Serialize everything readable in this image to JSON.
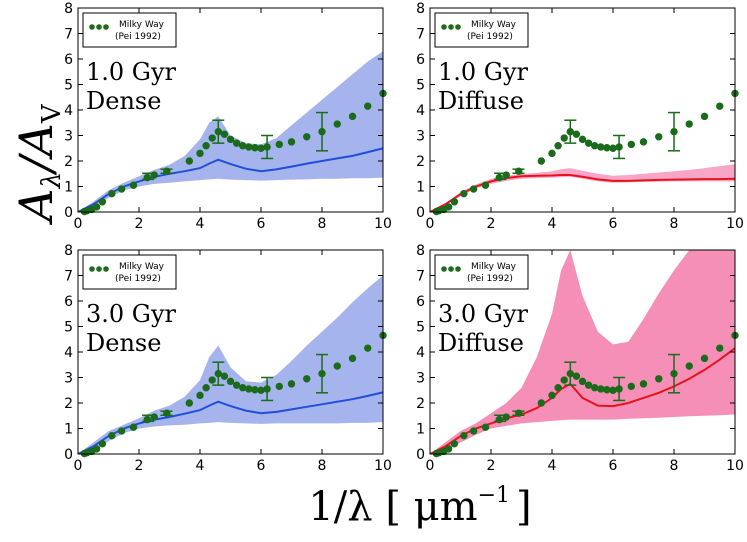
{
  "figure": {
    "ylabel": "Aλ/AV",
    "ylabel_main": "A",
    "ylabel_sub1": "λ",
    "ylabel_slash": "/A",
    "ylabel_sub2": "V",
    "xlabel": "1/λ [ μm⁻¹ ]",
    "xlabel_main": "1/λ [ μm",
    "xlabel_sup": "−1",
    "xlabel_close": "]"
  },
  "chart_data": [
    {
      "type": "line",
      "panel": "top-left",
      "title_line1": "1.0 Gyr",
      "title_line2": "Dense",
      "xlim": [
        0,
        10
      ],
      "ylim": [
        0,
        8
      ],
      "xticks": [
        0,
        2,
        4,
        6,
        8,
        10
      ],
      "yticks": [
        0,
        1,
        2,
        3,
        4,
        5,
        6,
        7,
        8
      ],
      "color": "#1f4fd6",
      "band_color": "#a6b4ee",
      "legend": {
        "label_line1": "Milky Way",
        "label_line2": "(Pei 1992)",
        "marker_color": "#1a6b1a",
        "position": "top-left"
      },
      "model": {
        "x": [
          0,
          0.5,
          1,
          1.5,
          2,
          2.5,
          3,
          3.5,
          4,
          4.3,
          4.6,
          5,
          5.5,
          6,
          6.5,
          7,
          7.5,
          8,
          8.5,
          9,
          9.5,
          10
        ],
        "median": [
          0,
          0.3,
          0.7,
          1.0,
          1.2,
          1.38,
          1.5,
          1.6,
          1.72,
          1.9,
          2.05,
          1.88,
          1.7,
          1.6,
          1.67,
          1.78,
          1.9,
          2.0,
          2.1,
          2.2,
          2.35,
          2.5
        ],
        "lower": [
          0,
          0.22,
          0.55,
          0.85,
          1.0,
          1.1,
          1.15,
          1.2,
          1.25,
          1.28,
          1.3,
          1.27,
          1.25,
          1.23,
          1.25,
          1.27,
          1.28,
          1.3,
          1.3,
          1.32,
          1.32,
          1.35
        ],
        "upper": [
          0,
          0.4,
          0.85,
          1.15,
          1.4,
          1.65,
          1.85,
          2.2,
          2.85,
          3.5,
          3.75,
          3.0,
          2.7,
          2.65,
          2.9,
          3.4,
          3.9,
          4.4,
          4.9,
          5.4,
          5.9,
          6.3
        ]
      }
    },
    {
      "type": "line",
      "panel": "top-right",
      "title_line1": "1.0 Gyr",
      "title_line2": "Diffuse",
      "xlim": [
        0,
        10
      ],
      "ylim": [
        0,
        8
      ],
      "xticks": [
        0,
        2,
        4,
        6,
        8,
        10
      ],
      "yticks": [
        0,
        1,
        2,
        3,
        4,
        5,
        6,
        7,
        8
      ],
      "color": "#e8121c",
      "band_color": "#f7a6c8",
      "legend": {
        "label_line1": "Milky Way",
        "label_line2": "(Pei 1992)",
        "marker_color": "#1a6b1a",
        "position": "top-left"
      },
      "model": {
        "x": [
          0,
          0.5,
          1,
          1.5,
          2,
          2.5,
          3,
          3.5,
          4,
          4.3,
          4.6,
          5,
          5.5,
          6,
          6.5,
          7,
          7.5,
          8,
          8.5,
          9,
          9.5,
          10
        ],
        "median": [
          0,
          0.3,
          0.7,
          1.0,
          1.2,
          1.33,
          1.4,
          1.42,
          1.43,
          1.45,
          1.45,
          1.38,
          1.28,
          1.22,
          1.22,
          1.24,
          1.26,
          1.27,
          1.28,
          1.29,
          1.29,
          1.3
        ],
        "lower": [
          0,
          0.26,
          0.62,
          0.92,
          1.1,
          1.22,
          1.3,
          1.33,
          1.35,
          1.37,
          1.38,
          1.3,
          1.2,
          1.15,
          1.16,
          1.18,
          1.19,
          1.2,
          1.2,
          1.2,
          1.2,
          1.2
        ],
        "upper": [
          0,
          0.34,
          0.78,
          1.08,
          1.3,
          1.42,
          1.5,
          1.53,
          1.6,
          1.68,
          1.72,
          1.62,
          1.5,
          1.42,
          1.45,
          1.5,
          1.55,
          1.6,
          1.65,
          1.72,
          1.8,
          1.88
        ]
      }
    },
    {
      "type": "line",
      "panel": "bottom-left",
      "title_line1": "3.0 Gyr",
      "title_line2": "Dense",
      "xlim": [
        0,
        10
      ],
      "ylim": [
        0,
        8
      ],
      "xticks": [
        0,
        2,
        4,
        6,
        8,
        10
      ],
      "yticks": [
        0,
        1,
        2,
        3,
        4,
        5,
        6,
        7,
        8
      ],
      "color": "#1f4fd6",
      "band_color": "#a6b4ee",
      "legend": {
        "label_line1": "Milky Way",
        "label_line2": "(Pei 1992)",
        "marker_color": "#1a6b1a",
        "position": "top-left"
      },
      "model": {
        "x": [
          0,
          0.5,
          1,
          1.5,
          2,
          2.5,
          3,
          3.5,
          4,
          4.3,
          4.6,
          5,
          5.5,
          6,
          6.5,
          7,
          7.5,
          8,
          8.5,
          9,
          9.5,
          10
        ],
        "median": [
          0,
          0.3,
          0.7,
          1.0,
          1.2,
          1.35,
          1.45,
          1.58,
          1.72,
          1.9,
          2.05,
          1.88,
          1.7,
          1.6,
          1.65,
          1.75,
          1.85,
          1.95,
          2.05,
          2.15,
          2.28,
          2.42
        ],
        "lower": [
          0,
          0.15,
          0.5,
          0.82,
          1.0,
          1.08,
          1.12,
          1.15,
          1.2,
          1.22,
          1.25,
          1.22,
          1.2,
          1.18,
          1.2,
          1.2,
          1.2,
          1.2,
          1.2,
          1.22,
          1.22,
          1.25
        ],
        "upper": [
          0,
          0.45,
          0.9,
          1.15,
          1.4,
          1.7,
          1.9,
          2.25,
          2.9,
          3.8,
          4.25,
          3.4,
          2.85,
          2.8,
          3.1,
          3.65,
          4.25,
          4.8,
          5.35,
          5.95,
          6.5,
          7.0
        ]
      }
    },
    {
      "type": "line",
      "panel": "bottom-right",
      "title_line1": "3.0 Gyr",
      "title_line2": "Diffuse",
      "xlim": [
        0,
        10
      ],
      "ylim": [
        0,
        8
      ],
      "xticks": [
        0,
        2,
        4,
        6,
        8,
        10
      ],
      "yticks": [
        0,
        1,
        2,
        3,
        4,
        5,
        6,
        7,
        8
      ],
      "color": "#e8121c",
      "band_color": "#f58fb8",
      "legend": {
        "label_line1": "Milky Way",
        "label_line2": "(Pei 1992)",
        "marker_color": "#1a6b1a",
        "position": "top-left"
      },
      "model": {
        "x": [
          0,
          0.5,
          1,
          1.5,
          2,
          2.5,
          3,
          3.5,
          4,
          4.3,
          4.6,
          5,
          5.5,
          6,
          6.5,
          7,
          7.5,
          8,
          8.5,
          9,
          9.5,
          10
        ],
        "median": [
          0,
          0.3,
          0.7,
          1.0,
          1.2,
          1.4,
          1.55,
          1.8,
          2.2,
          2.55,
          2.75,
          2.2,
          1.9,
          1.88,
          2.0,
          2.2,
          2.4,
          2.65,
          2.95,
          3.3,
          3.7,
          4.15
        ],
        "lower": [
          0,
          0.15,
          0.45,
          0.75,
          1.0,
          1.1,
          1.2,
          1.25,
          1.3,
          1.32,
          1.35,
          1.35,
          1.35,
          1.35,
          1.38,
          1.4,
          1.42,
          1.45,
          1.48,
          1.5,
          1.52,
          1.55
        ],
        "upper": [
          0,
          0.45,
          0.9,
          1.2,
          1.6,
          2.0,
          2.6,
          3.8,
          5.5,
          7.2,
          8.0,
          6.2,
          4.8,
          4.3,
          4.4,
          5.3,
          6.3,
          7.2,
          8.0,
          8.0,
          8.0,
          8.0
        ]
      }
    }
  ],
  "observed": {
    "name": "Milky Way (Pei 1992)",
    "color": "#1a6b1a",
    "x": [
      0.21,
      0.29,
      0.45,
      0.61,
      0.8,
      1.11,
      1.43,
      1.82,
      2.27,
      2.5,
      2.91,
      3.65,
      4.0,
      4.2,
      4.4,
      4.6,
      4.8,
      5.0,
      5.2,
      5.4,
      5.6,
      5.8,
      6.0,
      6.2,
      6.6,
      7.0,
      7.5,
      8.0,
      8.5,
      9.0,
      9.5,
      10.0
    ],
    "y": [
      0.02,
      0.05,
      0.1,
      0.2,
      0.4,
      0.72,
      0.9,
      1.05,
      1.35,
      1.45,
      1.6,
      2.0,
      2.3,
      2.6,
      2.9,
      3.15,
      3.05,
      2.85,
      2.7,
      2.6,
      2.55,
      2.52,
      2.5,
      2.55,
      2.65,
      2.75,
      2.95,
      3.15,
      3.45,
      3.75,
      4.15,
      4.65
    ],
    "error_bars": [
      {
        "x": 4.6,
        "y": 3.15,
        "err": 0.45
      },
      {
        "x": 6.2,
        "y": 2.55,
        "err": 0.45
      },
      {
        "x": 8.0,
        "y": 3.15,
        "err": 0.75
      },
      {
        "x": 2.3,
        "y": 1.4,
        "err": 0.12
      },
      {
        "x": 2.9,
        "y": 1.6,
        "err": 0.08
      }
    ]
  }
}
